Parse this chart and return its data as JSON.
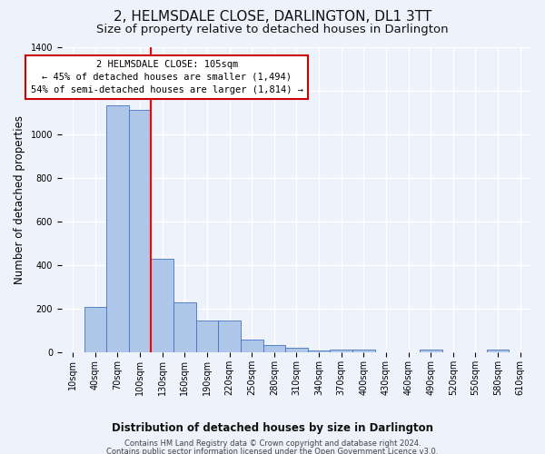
{
  "title": "2, HELMSDALE CLOSE, DARLINGTON, DL1 3TT",
  "subtitle": "Size of property relative to detached houses in Darlington",
  "xlabel": "Distribution of detached houses by size in Darlington",
  "ylabel": "Number of detached properties",
  "footnote1": "Contains HM Land Registry data © Crown copyright and database right 2024.",
  "footnote2": "Contains public sector information licensed under the Open Government Licence v3.0.",
  "bar_labels": [
    "10sqm",
    "40sqm",
    "70sqm",
    "100sqm",
    "130sqm",
    "160sqm",
    "190sqm",
    "220sqm",
    "250sqm",
    "280sqm",
    "310sqm",
    "340sqm",
    "370sqm",
    "400sqm",
    "430sqm",
    "460sqm",
    "490sqm",
    "520sqm",
    "550sqm",
    "580sqm",
    "610sqm"
  ],
  "bar_values": [
    0,
    210,
    1130,
    1110,
    430,
    230,
    145,
    145,
    60,
    35,
    20,
    10,
    13,
    13,
    0,
    0,
    12,
    0,
    0,
    12,
    0
  ],
  "bar_color": "#aec6e8",
  "bar_edge_color": "#4472c4",
  "ylim": [
    0,
    1400
  ],
  "yticks": [
    0,
    200,
    400,
    600,
    800,
    1000,
    1200,
    1400
  ],
  "red_line_x": 3.5,
  "annotation_text": "2 HELMSDALE CLOSE: 105sqm\n← 45% of detached houses are smaller (1,494)\n54% of semi-detached houses are larger (1,814) →",
  "annotation_box_color": "#ffffff",
  "annotation_box_edge": "#cc0000",
  "background_color": "#eef2fa",
  "grid_color": "#ffffff",
  "title_fontsize": 11,
  "subtitle_fontsize": 9.5,
  "axis_label_fontsize": 8.5,
  "tick_fontsize": 7,
  "annotation_fontsize": 7.5,
  "footnote_fontsize": 6
}
